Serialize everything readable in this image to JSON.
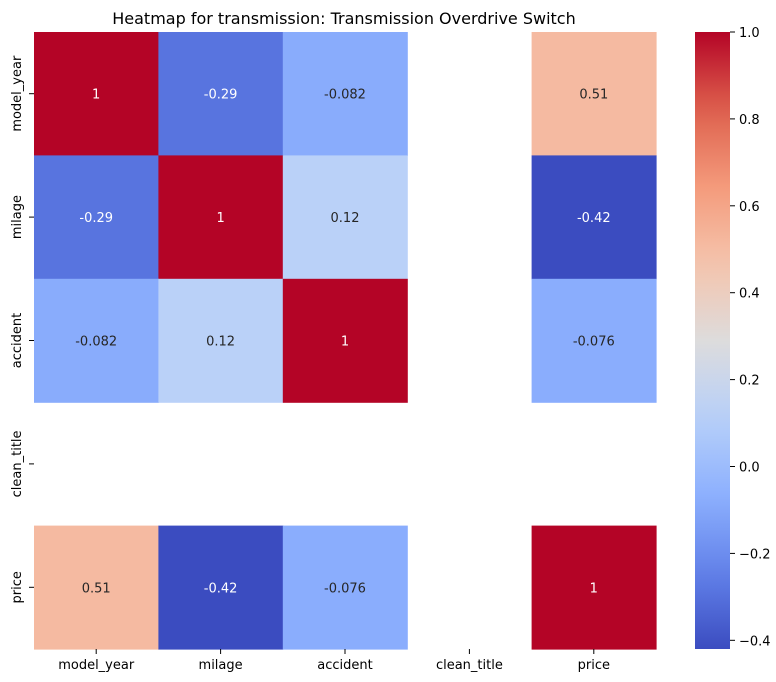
{
  "chart_data": {
    "type": "heatmap",
    "title": "Heatmap for transmission: Transmission Overdrive Switch",
    "x_labels": [
      "model_year",
      "milage",
      "accident",
      "clean_title",
      "price"
    ],
    "y_labels": [
      "model_year",
      "milage",
      "accident",
      "clean_title",
      "price"
    ],
    "values": [
      [
        1,
        -0.29,
        -0.082,
        null,
        0.51
      ],
      [
        -0.29,
        1,
        0.12,
        null,
        -0.42
      ],
      [
        -0.082,
        0.12,
        1,
        null,
        -0.076
      ],
      [
        null,
        null,
        null,
        null,
        null
      ],
      [
        0.51,
        -0.42,
        -0.076,
        null,
        1
      ]
    ],
    "cell_labels": [
      [
        "1",
        "-0.29",
        "-0.082",
        "",
        "0.51"
      ],
      [
        "-0.29",
        "1",
        "0.12",
        "",
        "-0.42"
      ],
      [
        "-0.082",
        "0.12",
        "1",
        "",
        "-0.076"
      ],
      [
        "",
        "",
        "",
        "",
        ""
      ],
      [
        "0.51",
        "-0.42",
        "-0.076",
        "",
        "1"
      ]
    ],
    "colormap": "coolwarm",
    "vmin": -0.42,
    "vmax": 1.0,
    "colorbar_ticks": [
      1.0,
      0.8,
      0.6,
      0.4,
      0.2,
      0.0,
      -0.2,
      -0.4
    ],
    "colorbar_tick_labels": [
      "1.0",
      "0.8",
      "0.6",
      "0.4",
      "0.2",
      "0.0",
      "−0.2",
      "−0.4"
    ],
    "colors": {
      "low": "#3b4cc0",
      "mid": "#dddcdc",
      "high": "#b40426"
    }
  }
}
